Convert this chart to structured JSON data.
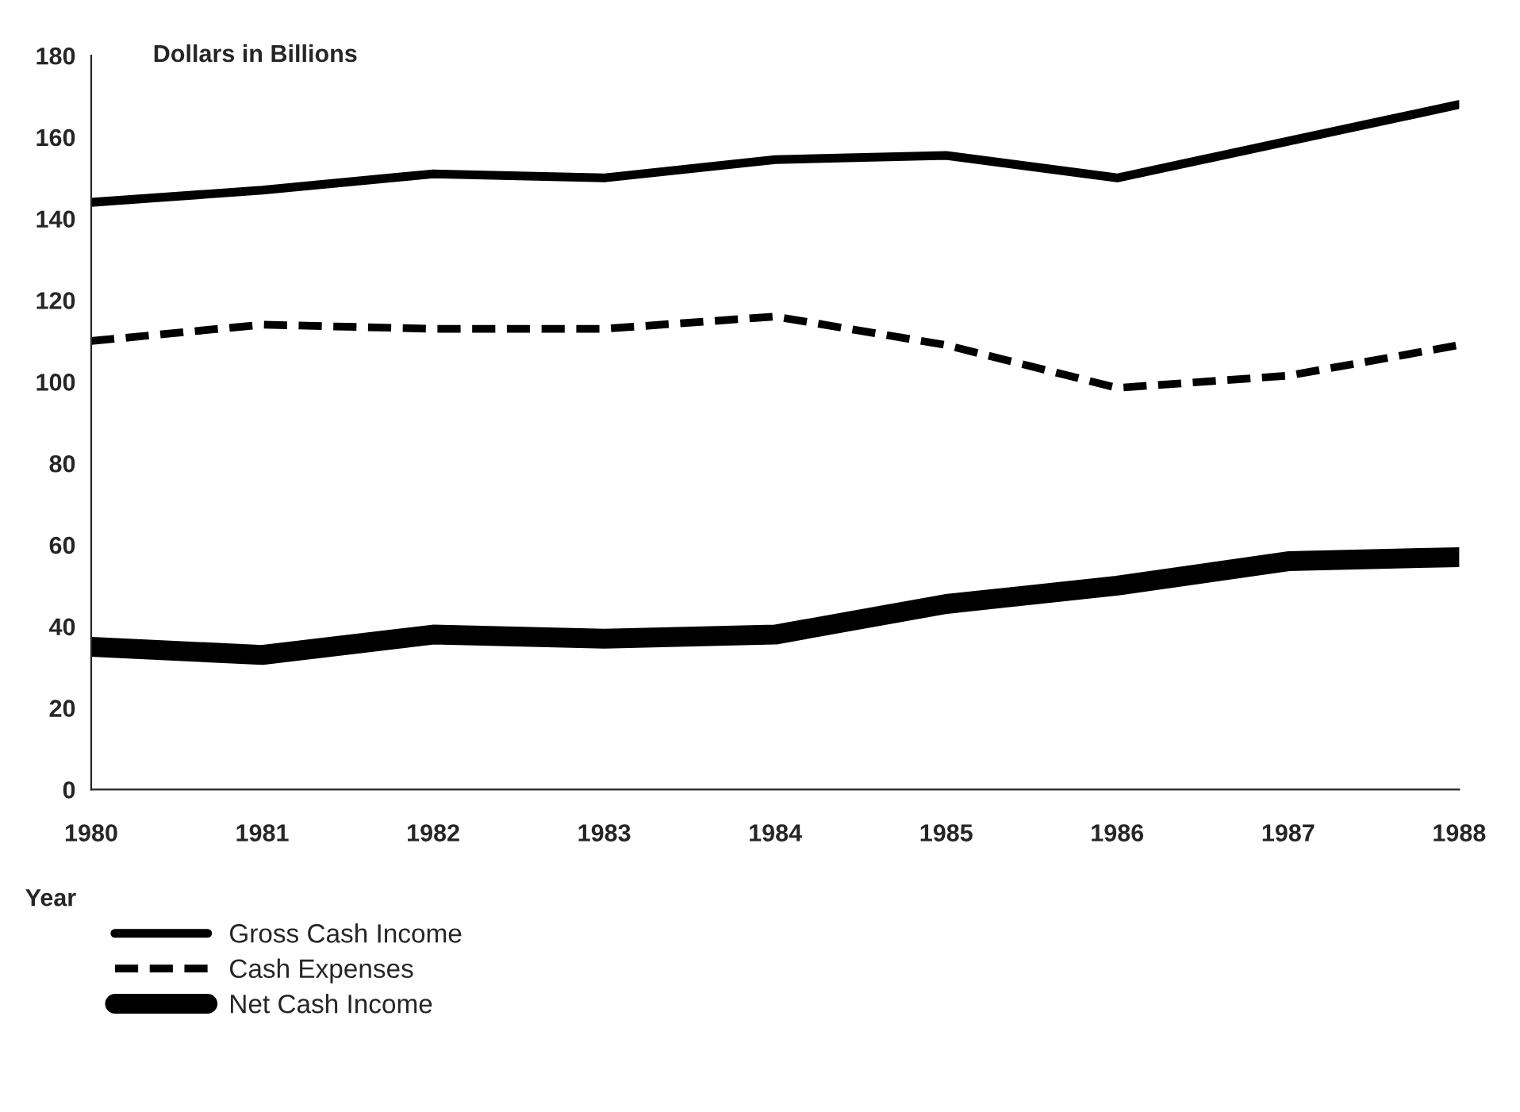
{
  "chart_data": {
    "type": "line",
    "ylabel": "Dollars in Billions",
    "xlabel": "Year",
    "x": [
      1980,
      1981,
      1982,
      1983,
      1984,
      1985,
      1986,
      1987,
      1988
    ],
    "series": [
      {
        "name": "Gross Cash Income",
        "color": "#000000",
        "line_style": "solid",
        "values": [
          144,
          147,
          151,
          150,
          154.5,
          155.5,
          150,
          159,
          168
        ]
      },
      {
        "name": "Cash Expenses",
        "color": "#000000",
        "line_style": "dashed",
        "values": [
          110,
          114,
          113,
          113,
          116,
          109,
          98.5,
          101.5,
          109
        ]
      },
      {
        "name": "Net Cash Income",
        "color": "#000000",
        "line_style": "solid",
        "values": [
          35,
          33,
          38,
          37,
          38,
          45.5,
          50,
          56,
          57
        ]
      }
    ],
    "xlim": [
      1980,
      1988
    ],
    "xticks": [
      1980,
      1981,
      1982,
      1983,
      1984,
      1985,
      1986,
      1987,
      1988
    ],
    "ylim": [
      0,
      180
    ],
    "yticks": [
      0,
      20,
      40,
      60,
      80,
      100,
      120,
      140,
      160,
      180
    ],
    "grid": false,
    "legend": "bottom left",
    "marker": "none"
  }
}
